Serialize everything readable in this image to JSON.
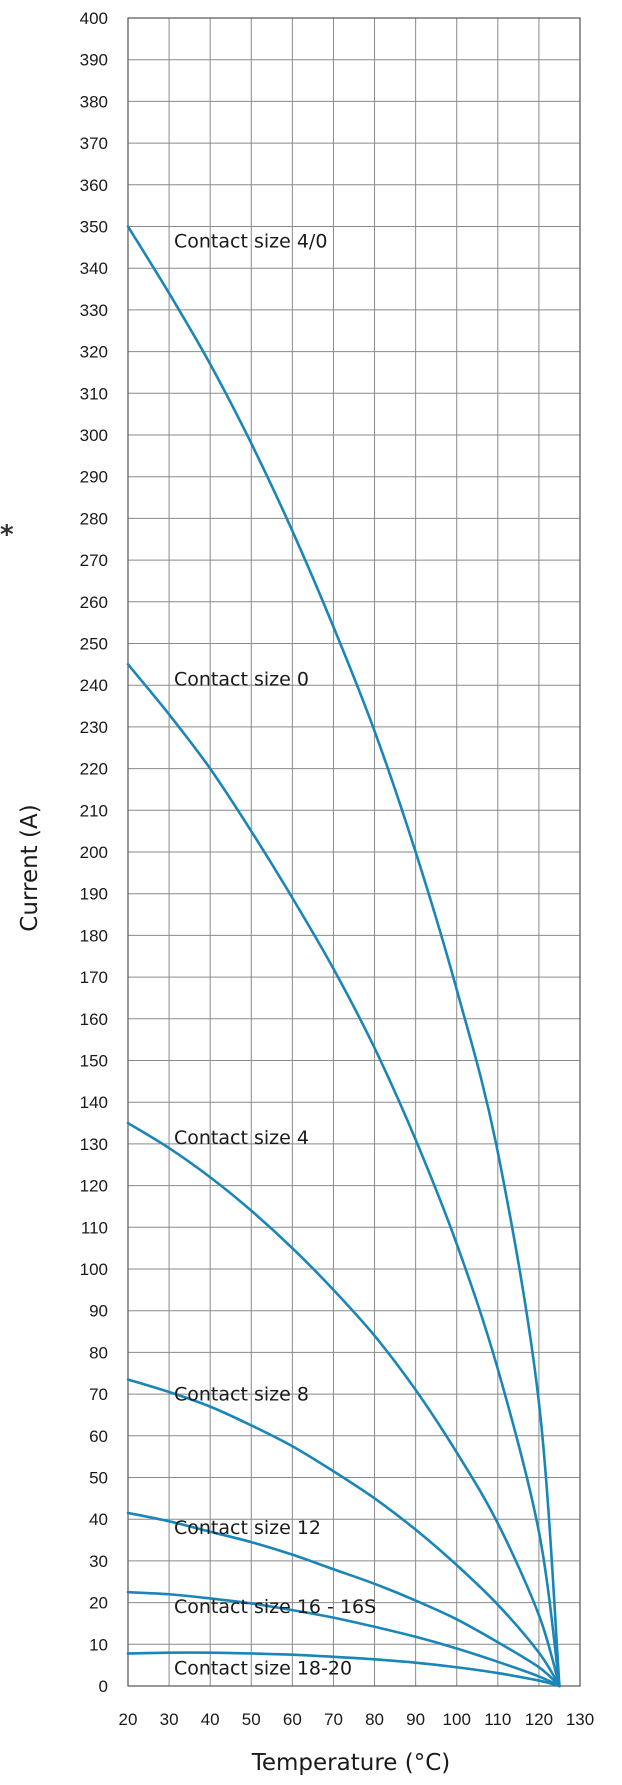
{
  "chart_data": {
    "type": "line",
    "title": "",
    "xlabel": "Temperature (°C)",
    "ylabel": "Current (A)",
    "xlim": [
      20,
      130
    ],
    "ylim": [
      0,
      400
    ],
    "xticks": [
      20,
      30,
      40,
      50,
      60,
      70,
      80,
      90,
      100,
      110,
      120,
      130
    ],
    "yticks": [
      0,
      10,
      20,
      30,
      40,
      50,
      60,
      70,
      80,
      90,
      100,
      110,
      120,
      130,
      140,
      150,
      160,
      170,
      180,
      190,
      200,
      210,
      220,
      230,
      240,
      250,
      260,
      270,
      280,
      290,
      300,
      310,
      320,
      330,
      340,
      350,
      360,
      370,
      380,
      390,
      400
    ],
    "grid": true,
    "line_color": "#1a86b8",
    "marker": "*",
    "series": [
      {
        "name": "Contact size 4/0",
        "x": [
          20,
          30,
          40,
          50,
          60,
          70,
          80,
          90,
          100,
          110,
          120,
          125
        ],
        "y": [
          350,
          334,
          317,
          298,
          277,
          254,
          229,
          200,
          167,
          128,
          68,
          0
        ]
      },
      {
        "name": "Contact size 0",
        "x": [
          20,
          30,
          40,
          50,
          60,
          70,
          80,
          90,
          100,
          110,
          120,
          125
        ],
        "y": [
          245,
          233,
          220,
          205,
          189,
          172,
          153,
          131,
          106,
          76,
          37,
          0
        ]
      },
      {
        "name": "Contact size 4",
        "x": [
          20,
          30,
          40,
          50,
          60,
          70,
          80,
          90,
          100,
          110,
          120,
          125
        ],
        "y": [
          135,
          129,
          122,
          114,
          105,
          95,
          84,
          71,
          56,
          39,
          17,
          0
        ]
      },
      {
        "name": "Contact size 8",
        "x": [
          20,
          30,
          40,
          50,
          60,
          70,
          80,
          90,
          100,
          110,
          120,
          125
        ],
        "y": [
          73.5,
          70.5,
          67,
          62.5,
          57.5,
          51.5,
          45,
          37.5,
          29,
          19.5,
          8,
          0
        ]
      },
      {
        "name": "Contact size 12",
        "x": [
          20,
          30,
          40,
          50,
          60,
          70,
          80,
          90,
          100,
          110,
          120,
          125
        ],
        "y": [
          41.5,
          39.5,
          37,
          34.5,
          31.5,
          28,
          24.5,
          20.5,
          16,
          10.5,
          4.5,
          0
        ]
      },
      {
        "name": "Contact size 16 - 16S",
        "x": [
          20,
          30,
          40,
          50,
          60,
          70,
          80,
          90,
          100,
          110,
          120,
          125
        ],
        "y": [
          22.5,
          22,
          21,
          19.8,
          18.2,
          16.4,
          14.2,
          11.8,
          9,
          5.8,
          2.3,
          0
        ]
      },
      {
        "name": "Contact size 18-20",
        "x": [
          20,
          30,
          40,
          50,
          60,
          70,
          80,
          90,
          100,
          110,
          120,
          125
        ],
        "y": [
          7.8,
          8,
          8,
          7.8,
          7.5,
          7,
          6.4,
          5.6,
          4.5,
          3.1,
          1.3,
          0
        ]
      }
    ]
  }
}
